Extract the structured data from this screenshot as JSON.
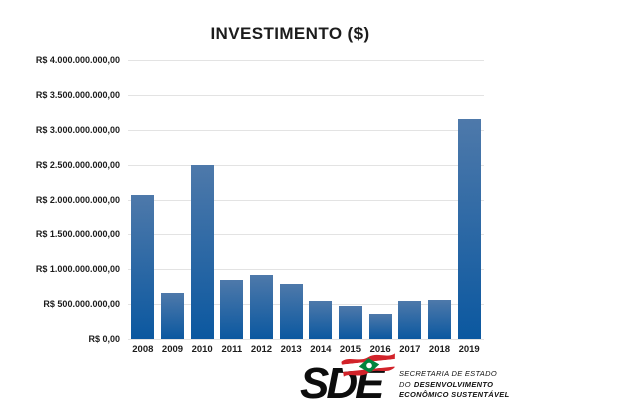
{
  "chart_data": {
    "type": "bar",
    "title": "INVESTIMENTO ($)",
    "categories": [
      "2008",
      "2009",
      "2010",
      "2011",
      "2012",
      "2013",
      "2014",
      "2015",
      "2016",
      "2017",
      "2018",
      "2019"
    ],
    "values": [
      2070000000,
      660000000,
      2500000000,
      840000000,
      915000000,
      790000000,
      550000000,
      475000000,
      355000000,
      545000000,
      560000000,
      3150000000
    ],
    "y_ticks": [
      {
        "label": "R$ 4.000.000.000,00",
        "value": 4000000000
      },
      {
        "label": "R$ 3.500.000.000,00",
        "value": 3500000000
      },
      {
        "label": "R$ 3.000.000.000,00",
        "value": 3000000000
      },
      {
        "label": "R$ 2.500.000.000,00",
        "value": 2500000000
      },
      {
        "label": "R$ 2.000.000.000,00",
        "value": 2000000000
      },
      {
        "label": "R$ 1.500.000.000,00",
        "value": 1500000000
      },
      {
        "label": "R$ 1.000.000.000,00",
        "value": 1000000000
      },
      {
        "label": "R$ 500.000.000,00",
        "value": 500000000
      },
      {
        "label": "R$ 0,00",
        "value": 0
      }
    ],
    "ylim": [
      0,
      4000000000
    ],
    "xlabel": "",
    "ylabel": "",
    "grid": "horizontal",
    "legend": "none"
  },
  "logo": {
    "acronym": "SDE",
    "line1": "SECRETARIA DE ESTADO",
    "line2_prefix": "DO",
    "line2_bold": "DESENVOLVIMENTO",
    "line3": "ECONÔMICO SUSTENTÁVEL",
    "flag": "santa-catarina-flag"
  },
  "colors": {
    "bar_gradient_top": "#4e79aa",
    "bar_gradient_bottom": "#0b58a0",
    "gridline": "#e3e3e3",
    "text": "#1c1c1c",
    "flag_red": "#d2232a",
    "flag_green": "#00843d",
    "background": "#ffffff"
  }
}
